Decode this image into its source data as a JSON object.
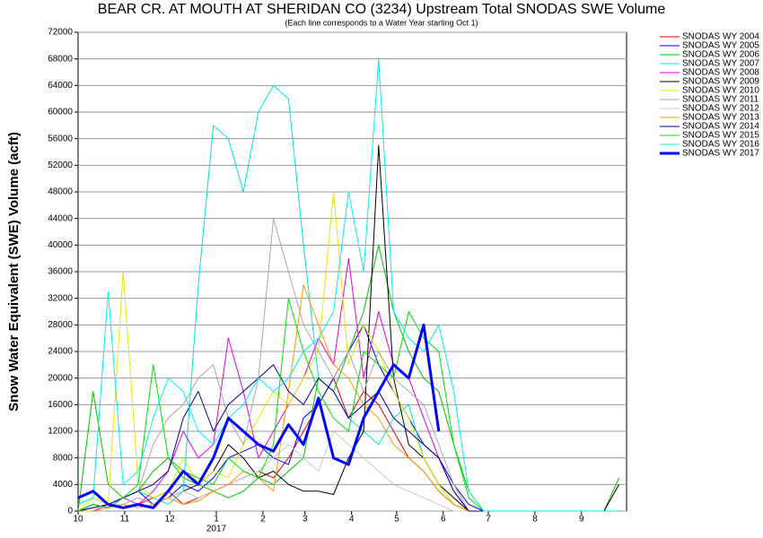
{
  "chart_data": {
    "type": "line",
    "title": "BEAR CR. AT MOUTH AT SHERIDAN CO (3234) Upstream Total SNODAS SWE Volume",
    "subtitle": "(Each line corresponds to a Water Year starting Oct 1)",
    "y_label": "Snow Water Equivalent (SWE) Volume (acft)",
    "year_label": "2017",
    "x": [
      0,
      10,
      20,
      30,
      40,
      50,
      60,
      70,
      80,
      90,
      100,
      110,
      120,
      130,
      140,
      150,
      160,
      170,
      180,
      190,
      200,
      210,
      220,
      230,
      240,
      250,
      260,
      270,
      280,
      290,
      300,
      310,
      320,
      330,
      340,
      350,
      360
    ],
    "xlim": [
      0,
      365
    ],
    "xticks": [
      {
        "value": 0,
        "label": "10"
      },
      {
        "value": 31,
        "label": "11"
      },
      {
        "value": 61,
        "label": "12"
      },
      {
        "value": 92,
        "label": "1"
      },
      {
        "value": 123,
        "label": "2"
      },
      {
        "value": 151,
        "label": "3"
      },
      {
        "value": 182,
        "label": "4"
      },
      {
        "value": 212,
        "label": "5"
      },
      {
        "value": 243,
        "label": "6"
      },
      {
        "value": 273,
        "label": "7"
      },
      {
        "value": 304,
        "label": "8"
      },
      {
        "value": 335,
        "label": "9"
      }
    ],
    "ylim": [
      0,
      72000
    ],
    "yticks": [
      0,
      4000,
      8000,
      12000,
      16000,
      20000,
      24000,
      28000,
      32000,
      36000,
      40000,
      44000,
      48000,
      52000,
      56000,
      60000,
      64000,
      68000,
      72000
    ],
    "grid": true,
    "legend": "right",
    "series": [
      {
        "name": "SNODAS WY 2004",
        "color": "#e00000",
        "values": [
          0,
          500,
          1000,
          500,
          1000,
          2000,
          3000,
          1000,
          2000,
          3000,
          4000,
          5000,
          6000,
          5000,
          8000,
          12000,
          16000,
          20000,
          14000,
          18000,
          16000,
          12000,
          8000,
          6000,
          3000,
          1000,
          0,
          0,
          0,
          0,
          0,
          0,
          0,
          0,
          0,
          0,
          0
        ]
      },
      {
        "name": "SNODAS WY 2005",
        "color": "#0000ff",
        "values": [
          0,
          1000,
          500,
          2000,
          3000,
          1000,
          2000,
          4000,
          3000,
          5000,
          8000,
          9000,
          10000,
          8000,
          7000,
          14000,
          16000,
          20000,
          24000,
          28000,
          22000,
          18000,
          14000,
          10000,
          8000,
          4000,
          1000,
          0,
          0,
          0,
          0,
          0,
          0,
          0,
          0,
          0,
          0
        ]
      },
      {
        "name": "SNODAS WY 2006",
        "color": "#00c000",
        "values": [
          0,
          18000,
          4000,
          2000,
          3000,
          6000,
          8000,
          5000,
          4000,
          3000,
          2000,
          3000,
          5000,
          4000,
          6000,
          8000,
          20000,
          18000,
          24000,
          30000,
          40000,
          30000,
          24000,
          20000,
          18000,
          10000,
          3000,
          0,
          0,
          0,
          0,
          0,
          0,
          0,
          0,
          0,
          5000
        ]
      },
      {
        "name": "SNODAS WY 2007",
        "color": "#00e0e0",
        "values": [
          1000,
          2000,
          1000,
          2000,
          3000,
          2000,
          1000,
          3000,
          34000,
          58000,
          56000,
          48000,
          60000,
          64000,
          62000,
          40000,
          20000,
          18000,
          14000,
          12000,
          10000,
          14000,
          16000,
          8000,
          4000,
          1000,
          0,
          0,
          0,
          0,
          0,
          0,
          0,
          0,
          0,
          0,
          0
        ]
      },
      {
        "name": "SNODAS WY 2008",
        "color": "#e000e0",
        "values": [
          0,
          0,
          1000,
          2000,
          1000,
          3000,
          6000,
          12000,
          8000,
          10000,
          26000,
          18000,
          8000,
          12000,
          16000,
          20000,
          26000,
          22000,
          38000,
          20000,
          30000,
          22000,
          20000,
          14000,
          8000,
          3000,
          0,
          0,
          0,
          0,
          0,
          0,
          0,
          0,
          0,
          0,
          0
        ]
      },
      {
        "name": "SNODAS WY 2009",
        "color": "#000000",
        "values": [
          0,
          1000,
          500,
          1000,
          2000,
          1000,
          2000,
          3000,
          4000,
          6000,
          10000,
          8000,
          5000,
          6000,
          4000,
          3000,
          3000,
          2500,
          8000,
          12000,
          55000,
          20000,
          10000,
          8000,
          4000,
          2000,
          0,
          0,
          0,
          0,
          0,
          0,
          0,
          0,
          0,
          0,
          4000
        ]
      },
      {
        "name": "SNODAS WY 2010",
        "color": "#e8e800",
        "values": [
          0,
          2000,
          1000,
          36000,
          4000,
          2000,
          3000,
          8000,
          4000,
          6000,
          5000,
          10000,
          14000,
          18000,
          16000,
          20000,
          24000,
          48000,
          22000,
          28000,
          24000,
          18000,
          14000,
          8000,
          4000,
          1000,
          0,
          0,
          0,
          0,
          0,
          0,
          0,
          0,
          0,
          0,
          0
        ]
      },
      {
        "name": "SNODAS WY 2011",
        "color": "#a8a8a8",
        "values": [
          0,
          500,
          1000,
          2000,
          3000,
          10000,
          14000,
          16000,
          20000,
          22000,
          14000,
          10000,
          20000,
          44000,
          36000,
          28000,
          24000,
          20000,
          24000,
          18000,
          24000,
          20000,
          18000,
          16000,
          10000,
          4000,
          0,
          0,
          0,
          0,
          0,
          0,
          0,
          0,
          0,
          0,
          0
        ]
      },
      {
        "name": "SNODAS WY 2012",
        "color": "#c8c8c8",
        "values": [
          0,
          500,
          1000,
          1000,
          2000,
          1000,
          2000,
          3000,
          2000,
          3000,
          4000,
          5000,
          6000,
          8000,
          10000,
          8000,
          6000,
          12000,
          10000,
          8000,
          6000,
          4000,
          3000,
          2000,
          1000,
          0,
          0,
          0,
          0,
          0,
          0,
          0,
          0,
          0,
          0,
          0,
          0
        ]
      },
      {
        "name": "SNODAS WY 2013",
        "color": "#ff9900",
        "values": [
          0,
          0,
          500,
          1000,
          500,
          1000,
          2000,
          1000,
          1500,
          3000,
          4000,
          6000,
          5000,
          3000,
          18000,
          34000,
          28000,
          22000,
          20000,
          16000,
          14000,
          10000,
          8000,
          6000,
          3000,
          1000,
          0,
          0,
          0,
          0,
          0,
          0,
          0,
          0,
          0,
          0,
          0
        ]
      },
      {
        "name": "SNODAS WY 2014",
        "color": "#000090",
        "values": [
          0,
          500,
          1000,
          2000,
          3000,
          4000,
          6000,
          14000,
          18000,
          12000,
          16000,
          18000,
          20000,
          22000,
          18000,
          16000,
          20000,
          18000,
          14000,
          16000,
          18000,
          14000,
          12000,
          10000,
          8000,
          3000,
          0,
          0,
          0,
          0,
          0,
          0,
          0,
          0,
          0,
          0,
          0
        ]
      },
      {
        "name": "SNODAS WY 2015",
        "color": "#00e000",
        "values": [
          0,
          1000,
          500,
          2000,
          4000,
          22000,
          8000,
          6000,
          5000,
          4000,
          8000,
          6000,
          5000,
          10000,
          32000,
          24000,
          18000,
          14000,
          12000,
          24000,
          22000,
          20000,
          30000,
          26000,
          24000,
          10000,
          2000,
          0,
          0,
          0,
          0,
          0,
          0,
          0,
          0,
          0,
          0
        ]
      },
      {
        "name": "SNODAS WY 2016",
        "color": "#00f0f0",
        "values": [
          1000,
          2000,
          33000,
          4000,
          6000,
          14000,
          20000,
          18000,
          12000,
          10000,
          14000,
          16000,
          20000,
          18000,
          20000,
          24000,
          26000,
          30000,
          48000,
          36000,
          68000,
          30000,
          26000,
          24000,
          28000,
          18000,
          3000,
          0,
          0,
          0,
          0,
          0,
          0,
          0,
          0,
          0,
          0
        ]
      },
      {
        "name": "SNODAS WY 2017",
        "color": "#0000ff",
        "width": 3,
        "values": [
          2000,
          3000,
          1000,
          500,
          1000,
          500,
          3000,
          6000,
          4000,
          8000,
          14000,
          12000,
          10000,
          9000,
          13000,
          10000,
          17000,
          8000,
          7000,
          14000,
          18000,
          22000,
          20000,
          28000,
          12000,
          null,
          null,
          null,
          null,
          null,
          null,
          null,
          null,
          null,
          null,
          null,
          null
        ]
      }
    ]
  }
}
